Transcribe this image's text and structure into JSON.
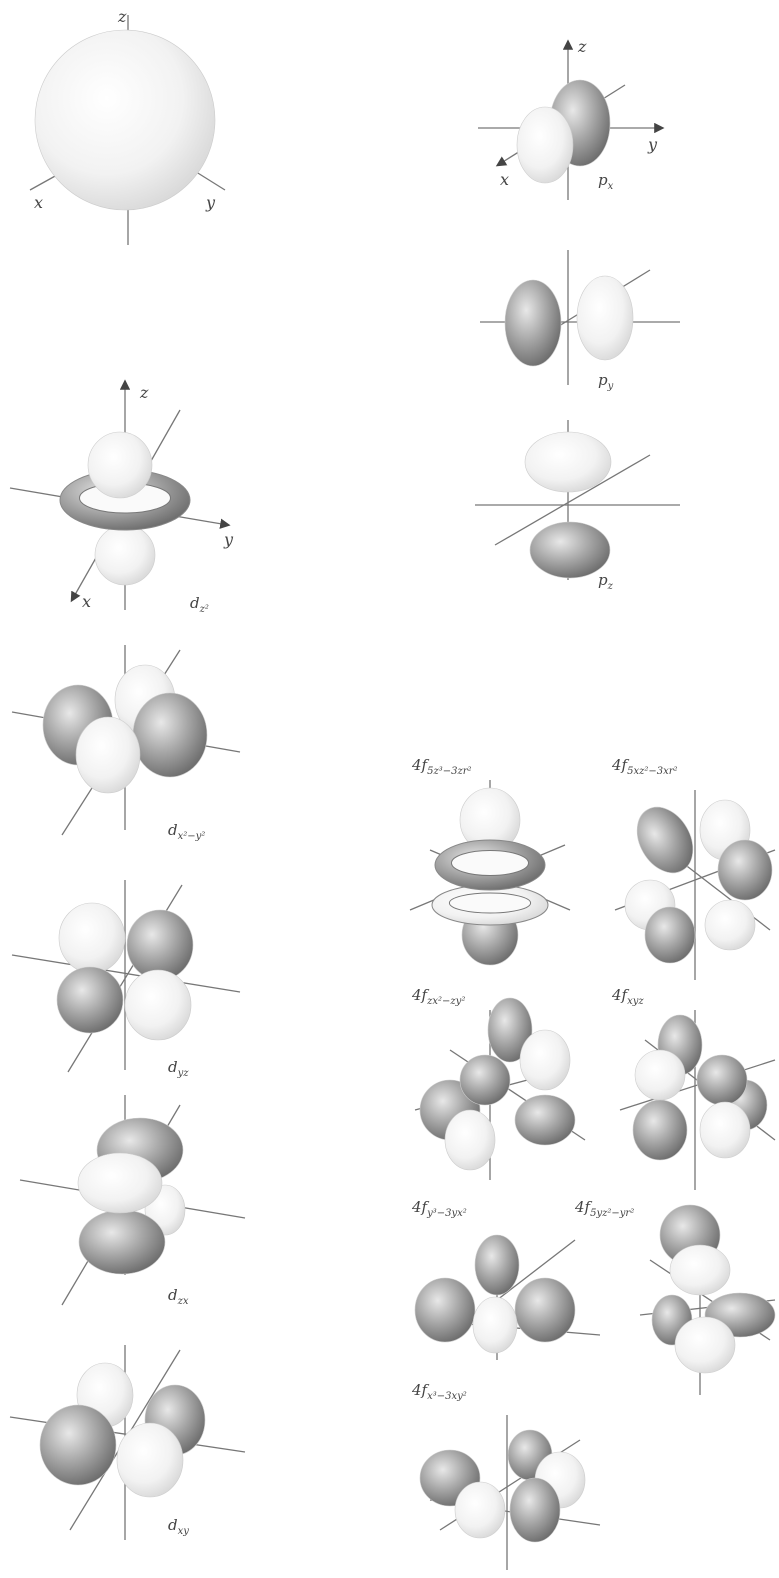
{
  "panels": [
    {
      "axes": [
        "z",
        "x",
        "y"
      ]
    },
    {
      "label": {
        "main": "p",
        "sub": "x"
      },
      "axes": [
        "z",
        "y",
        "x"
      ]
    },
    {
      "label": {
        "main": "p",
        "sub": "y"
      }
    },
    {
      "label": {
        "main": "p",
        "sub": "z"
      }
    },
    {
      "label": {
        "main": "d",
        "sub": "z²"
      },
      "axes": [
        "z",
        "y",
        "x"
      ]
    },
    {
      "label": {
        "main": "d",
        "sub": "x²−y²"
      }
    },
    {
      "label": {
        "main": "d",
        "sub": "yz"
      }
    },
    {
      "label": {
        "main": "d",
        "sub": "zx"
      }
    },
    {
      "label": {
        "main": "d",
        "sub": "xy"
      }
    },
    {
      "label": {
        "main": "4f",
        "sub": "5z³−3zr²"
      }
    },
    {
      "label": {
        "main": "4f",
        "sub": "5xz²−3xr²"
      }
    },
    {
      "label": {
        "main": "4f",
        "sub": "zx²−zy²"
      }
    },
    {
      "label": {
        "main": "4f",
        "sub": "xyz"
      }
    },
    {
      "label": {
        "main": "4f",
        "sub": "y³−3yx²"
      }
    },
    {
      "label": {
        "main": "4f",
        "sub": "5yz²−yr²"
      }
    },
    {
      "label": {
        "main": "4f",
        "sub": "x³−3xy²"
      }
    }
  ]
}
